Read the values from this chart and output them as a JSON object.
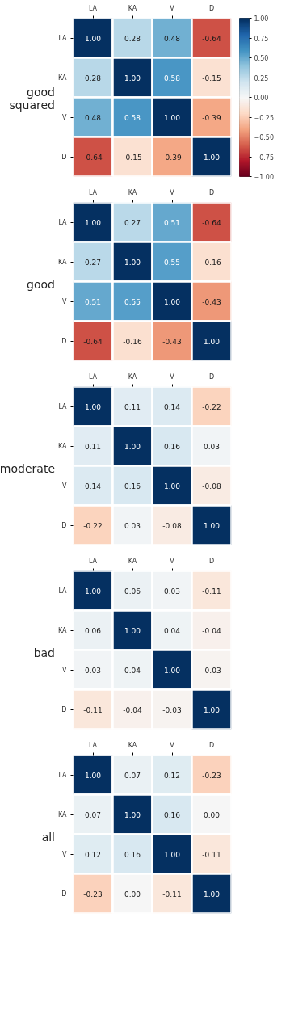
{
  "chart_data": [
    {
      "type": "heatmap",
      "title": "good squared",
      "categories": [
        "LA",
        "KA",
        "V",
        "D"
      ],
      "y_categories": [
        "LA",
        "KA",
        "V",
        "D"
      ],
      "cells": [
        [
          1.0,
          0.28,
          0.48,
          -0.64
        ],
        [
          0.28,
          1.0,
          0.58,
          -0.15
        ],
        [
          0.48,
          0.58,
          1.0,
          -0.39
        ],
        [
          -0.64,
          -0.15,
          -0.39,
          1.0
        ]
      ],
      "cell_labels": [
        [
          "1.00",
          "0.28",
          "0.48",
          "-0.64"
        ],
        [
          "0.28",
          "1.00",
          "0.58",
          "-0.15"
        ],
        [
          "0.48",
          "0.58",
          "1.00",
          "-0.39"
        ],
        [
          "-0.64",
          "-0.15",
          "-0.39",
          "1.00"
        ]
      ],
      "clim": [
        -1.0,
        1.0
      ],
      "cticks": [
        {
          "value": 1.0,
          "label": "1.00"
        },
        {
          "value": 0.75,
          "label": "0.75"
        },
        {
          "value": 0.5,
          "label": "0.50"
        },
        {
          "value": 0.25,
          "label": "0.25"
        },
        {
          "value": 0.0,
          "label": "0.00"
        },
        {
          "value": -0.25,
          "label": "−0.25"
        },
        {
          "value": -0.5,
          "label": "−0.50"
        },
        {
          "value": -0.75,
          "label": "−0.75"
        },
        {
          "value": -1.0,
          "label": "−1.00"
        }
      ]
    },
    {
      "type": "heatmap",
      "title": "good",
      "categories": [
        "LA",
        "KA",
        "V",
        "D"
      ],
      "y_categories": [
        "LA",
        "KA",
        "V",
        "D"
      ],
      "cells": [
        [
          1.0,
          0.27,
          0.51,
          -0.64
        ],
        [
          0.27,
          1.0,
          0.55,
          -0.16
        ],
        [
          0.51,
          0.55,
          1.0,
          -0.43
        ],
        [
          -0.64,
          -0.16,
          -0.43,
          1.0
        ]
      ],
      "cell_labels": [
        [
          "1.00",
          "0.27",
          "0.51",
          "-0.64"
        ],
        [
          "0.27",
          "1.00",
          "0.55",
          "-0.16"
        ],
        [
          "0.51",
          "0.55",
          "1.00",
          "-0.43"
        ],
        [
          "-0.64",
          "-0.16",
          "-0.43",
          "1.00"
        ]
      ]
    },
    {
      "type": "heatmap",
      "title": "moderate",
      "categories": [
        "LA",
        "KA",
        "V",
        "D"
      ],
      "y_categories": [
        "LA",
        "KA",
        "V",
        "D"
      ],
      "cells": [
        [
          1.0,
          0.11,
          0.14,
          -0.22
        ],
        [
          0.11,
          1.0,
          0.16,
          0.03
        ],
        [
          0.14,
          0.16,
          1.0,
          -0.08
        ],
        [
          -0.22,
          0.03,
          -0.08,
          1.0
        ]
      ],
      "cell_labels": [
        [
          "1.00",
          "0.11",
          "0.14",
          "-0.22"
        ],
        [
          "0.11",
          "1.00",
          "0.16",
          "0.03"
        ],
        [
          "0.14",
          "0.16",
          "1.00",
          "-0.08"
        ],
        [
          "-0.22",
          "0.03",
          "-0.08",
          "1.00"
        ]
      ]
    },
    {
      "type": "heatmap",
      "title": "bad",
      "categories": [
        "LA",
        "KA",
        "V",
        "D"
      ],
      "y_categories": [
        "LA",
        "KA",
        "V",
        "D"
      ],
      "cells": [
        [
          1.0,
          0.06,
          0.03,
          -0.11
        ],
        [
          0.06,
          1.0,
          0.04,
          -0.04
        ],
        [
          0.03,
          0.04,
          1.0,
          -0.03
        ],
        [
          -0.11,
          -0.04,
          -0.03,
          1.0
        ]
      ],
      "cell_labels": [
        [
          "1.00",
          "0.06",
          "0.03",
          "-0.11"
        ],
        [
          "0.06",
          "1.00",
          "0.04",
          "-0.04"
        ],
        [
          "0.03",
          "0.04",
          "1.00",
          "-0.03"
        ],
        [
          "-0.11",
          "-0.04",
          "-0.03",
          "1.00"
        ]
      ]
    },
    {
      "type": "heatmap",
      "title": "all",
      "categories": [
        "LA",
        "KA",
        "V",
        "D"
      ],
      "y_categories": [
        "LA",
        "KA",
        "V",
        "D"
      ],
      "cells": [
        [
          1.0,
          0.07,
          0.12,
          -0.23
        ],
        [
          0.07,
          1.0,
          0.16,
          0.0
        ],
        [
          0.12,
          0.16,
          1.0,
          -0.11
        ],
        [
          -0.23,
          0.0,
          -0.11,
          1.0
        ]
      ],
      "cell_labels": [
        [
          "1.00",
          "0.07",
          "0.12",
          "-0.23"
        ],
        [
          "0.07",
          "1.00",
          "0.16",
          "0.00"
        ],
        [
          "0.12",
          "0.16",
          "1.00",
          "-0.11"
        ],
        [
          "-0.23",
          "0.00",
          "-0.11",
          "1.00"
        ]
      ]
    }
  ]
}
